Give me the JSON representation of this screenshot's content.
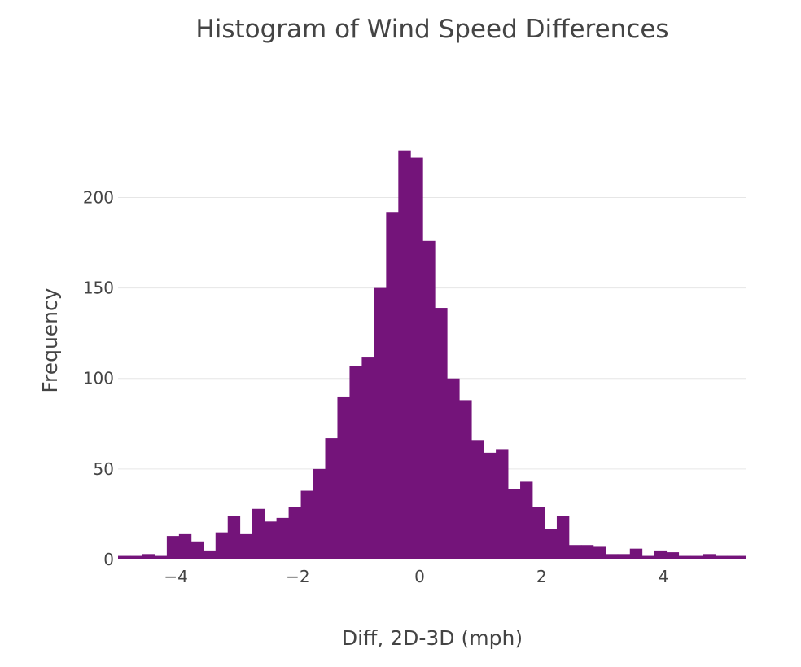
{
  "chart_data": {
    "type": "histogram",
    "title": "Histogram of Wind Speed Differences",
    "xlabel": "Diff, 2D-3D (mph)",
    "ylabel": "Frequency",
    "xlim": [
      -4.95,
      5.35
    ],
    "ylim": [
      0,
      238
    ],
    "bin_start": -4.95,
    "bin_width": 0.2,
    "counts": [
      2,
      2,
      3,
      2,
      13,
      14,
      10,
      5,
      15,
      24,
      14,
      28,
      21,
      23,
      29,
      38,
      50,
      67,
      90,
      107,
      112,
      150,
      192,
      226,
      222,
      176,
      139,
      100,
      88,
      66,
      59,
      61,
      39,
      43,
      29,
      17,
      24,
      8,
      8,
      7,
      3,
      3,
      6,
      2,
      5,
      4,
      2,
      2,
      3,
      2,
      2,
      2
    ],
    "xticks": [
      -4,
      -2,
      0,
      2,
      4
    ],
    "xtick_labels": [
      "−4",
      "−2",
      "0",
      "2",
      "4"
    ],
    "yticks": [
      0,
      50,
      100,
      150,
      200
    ],
    "ytick_labels": [
      "0",
      "50",
      "100",
      "150",
      "200"
    ],
    "bar_color": "#74147a",
    "grid": "horizontal",
    "legend": "none"
  }
}
